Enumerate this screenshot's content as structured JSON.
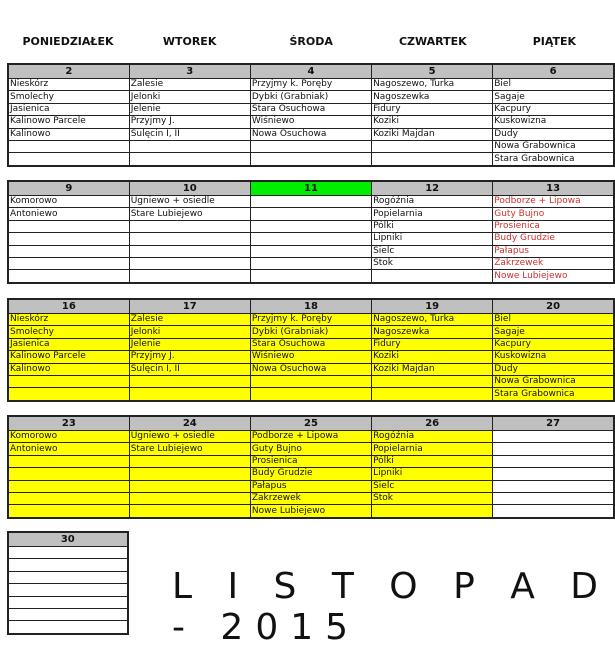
{
  "day_names": [
    "PONIEDZIAŁEK",
    "WTOREK",
    "ŚRODA",
    "CZWARTEK",
    "PIĄTEK"
  ],
  "colors": {
    "header_gray": "#c0c0c0",
    "today_green": "#00ee00",
    "done_yellow": "#ffff00",
    "highlight_red": "#d0302c"
  },
  "weeks": [
    {
      "days": [
        {
          "num": "2",
          "entries": [
            "Nieskórz",
            "Smolechy",
            "Jasienica",
            "Kalinowo Parcele",
            "Kalinowo"
          ]
        },
        {
          "num": "3",
          "entries": [
            "Zalesie",
            "Jelonki",
            "Jelenie",
            "Przyjmy J.",
            "Sulęcin I, II"
          ]
        },
        {
          "num": "4",
          "entries": [
            "Przyjmy k. Poręby",
            "Dybki (Grabniak)",
            "Stara Osuchowa",
            "Wiśniewo",
            "Nowa Osuchowa"
          ]
        },
        {
          "num": "5",
          "entries": [
            "Nagoszewo, Turka",
            "Nagoszewka",
            "Fidury",
            "Koziki",
            "Koziki Majdan"
          ]
        },
        {
          "num": "6",
          "entries": [
            "Biel",
            "Sagaje",
            "Kacpury",
            "Kuskowizna",
            "Dudy",
            "Nowa Grabownica",
            "Stara Grabownica"
          ]
        }
      ]
    },
    {
      "days": [
        {
          "num": "9",
          "entries": [
            "Komorowo",
            "Antoniewo"
          ]
        },
        {
          "num": "10",
          "entries": [
            "Ugniewo + osiedle",
            "Stare Lubiejewo"
          ]
        },
        {
          "num": "11",
          "header": "green",
          "entries": []
        },
        {
          "num": "12",
          "entries": [
            "Rogóźnia",
            "Popielarnia",
            "Pólki",
            "Lipniki",
            "Sielc",
            "Stok"
          ]
        },
        {
          "num": "13",
          "text": "red",
          "entries": [
            "Podborze + Lipowa",
            "Guty Bujno",
            "Prosienica",
            "Budy Grudzie",
            "Pałapus",
            "Zakrzewek",
            "Nowe Lubiejewo"
          ]
        }
      ]
    },
    {
      "days": [
        {
          "num": "16",
          "bg": "yellow",
          "entries": [
            "Nieskórz",
            "Smolechy",
            "Jasienica",
            "Kalinowo Parcele",
            "Kalinowo"
          ]
        },
        {
          "num": "17",
          "bg": "yellow",
          "entries": [
            "Zalesie",
            "Jelonki",
            "Jelenie",
            "Przyjmy J.",
            "Sulęcin I, II"
          ]
        },
        {
          "num": "18",
          "bg": "yellow",
          "entries": [
            "Przyjmy k. Poręby",
            "Dybki (Grabniak)",
            "Stara Osuchowa",
            "Wiśniewo",
            "Nowa Osuchowa"
          ]
        },
        {
          "num": "19",
          "bg": "yellow",
          "entries": [
            "Nagoszewo, Turka",
            "Nagoszewka",
            "Fidury",
            "Koziki",
            "Koziki Majdan"
          ]
        },
        {
          "num": "20",
          "bg": "yellow",
          "entries": [
            "Biel",
            "Sagaje",
            "Kacpury",
            "Kuskowizna",
            "Dudy",
            "Nowa Grabownica",
            "Stara Grabownica"
          ]
        }
      ]
    },
    {
      "days": [
        {
          "num": "23",
          "bg": "yellow",
          "entries": [
            "Komorowo",
            "Antoniewo"
          ]
        },
        {
          "num": "24",
          "bg": "yellow",
          "entries": [
            "Ugniewo + osiedle",
            "Stare Lubiejewo"
          ]
        },
        {
          "num": "25",
          "bg": "yellow",
          "entries": [
            "Podborze + Lipowa",
            "Guty Bujno",
            "Prosienica",
            "Budy Grudzie",
            "Pałapus",
            "Zakrzewek",
            "Nowe Lubiejewo"
          ]
        },
        {
          "num": "26",
          "bg": "yellow",
          "entries": [
            "Rogóźnia",
            "Popielarnia",
            "Pólki",
            "Lipniki",
            "Sielc",
            "Stok"
          ]
        },
        {
          "num": "27",
          "entries": []
        }
      ]
    },
    {
      "days": [
        {
          "num": "30",
          "entries": []
        }
      ]
    }
  ],
  "title": "L I S T O P A D - 2015"
}
